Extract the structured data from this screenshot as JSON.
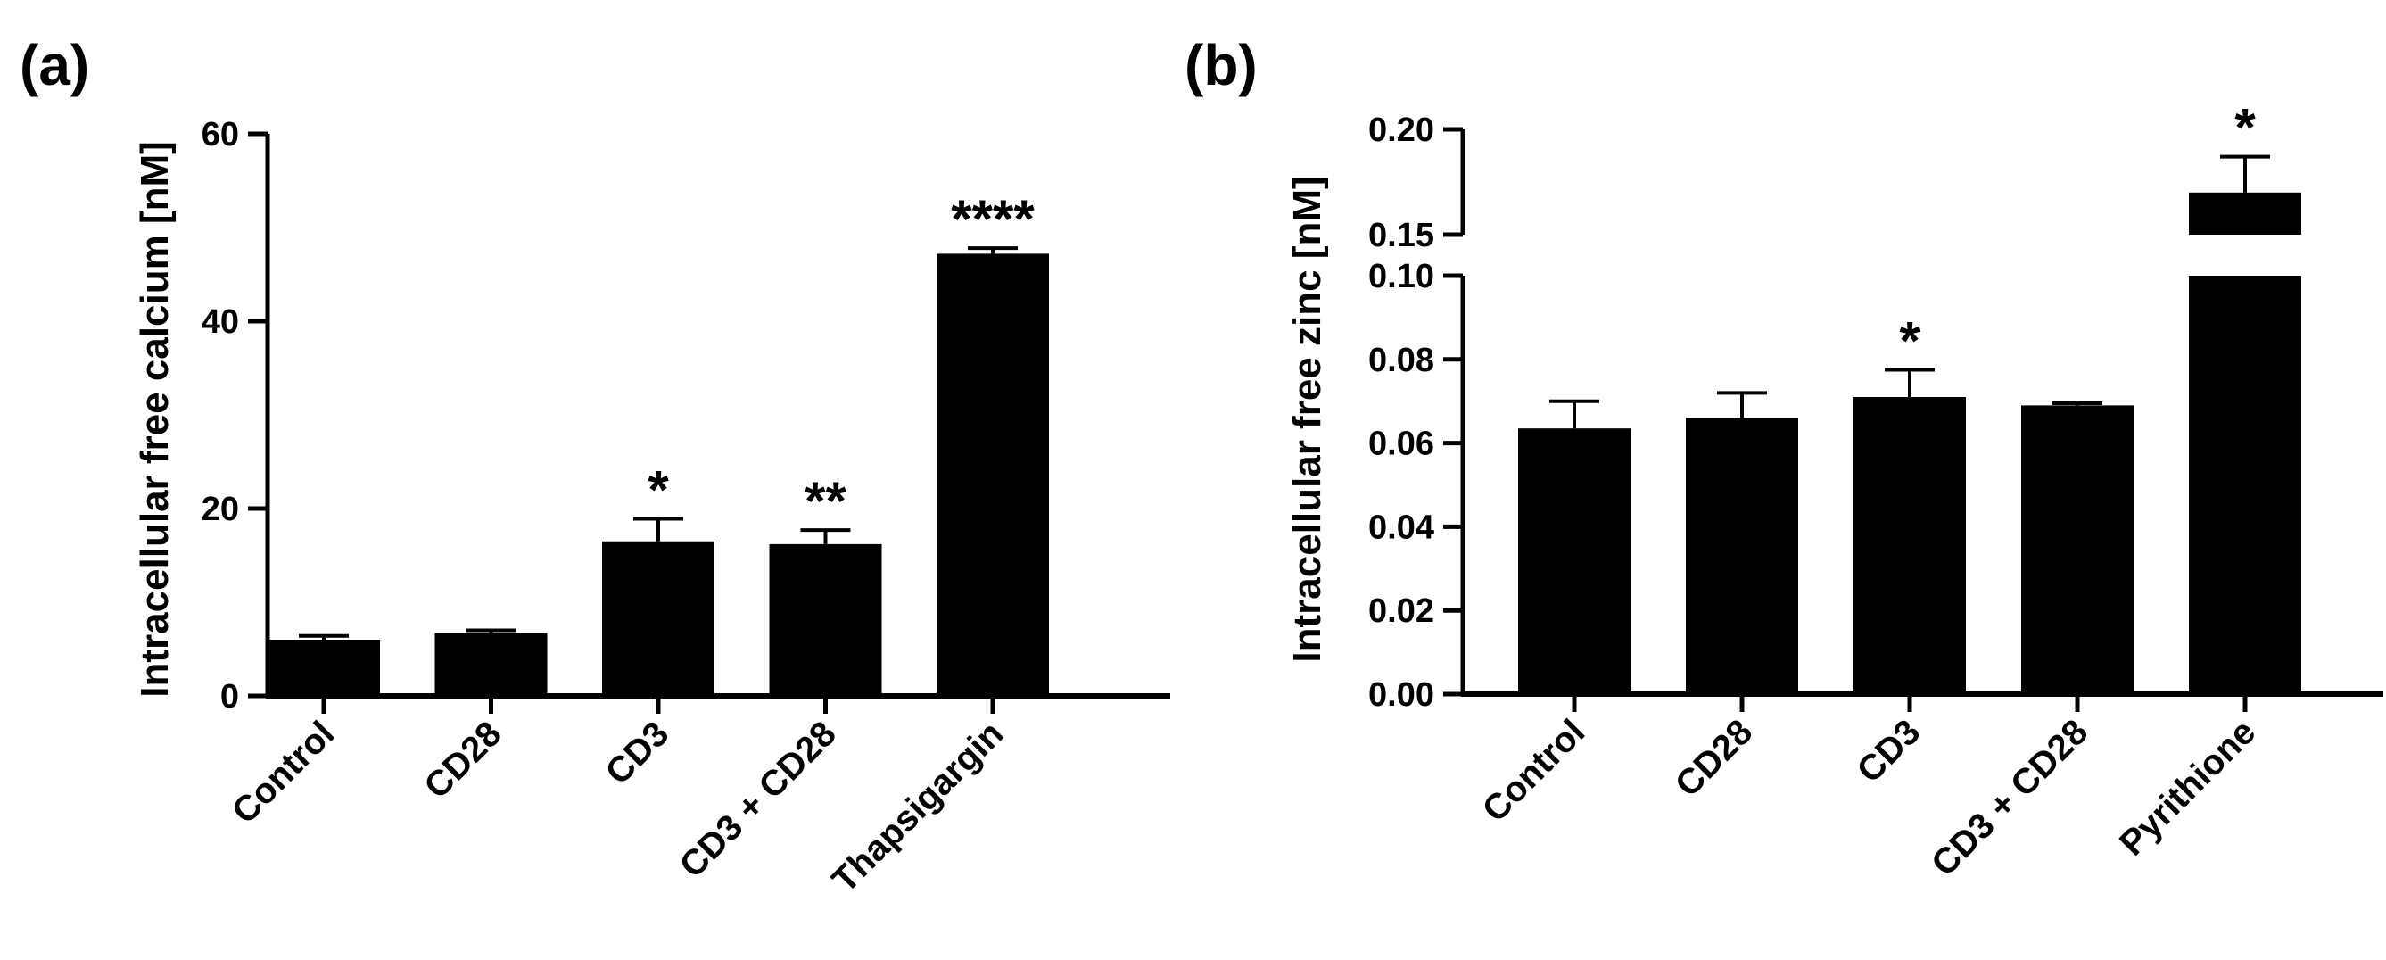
{
  "chart_data": [
    {
      "type": "bar",
      "panel_label": "(a)",
      "ylabel": "Intracellular free calcium [nM]",
      "xlabel": "",
      "categories": [
        "Control",
        "CD28",
        "CD3",
        "CD3 + CD28",
        "Thapsigargin"
      ],
      "values": [
        6,
        6.7,
        16.5,
        16.2,
        47.2
      ],
      "errors": [
        0.4,
        0.3,
        2.4,
        1.5,
        0.6
      ],
      "significance": [
        "",
        "",
        "*",
        "**",
        "****"
      ],
      "ylim": [
        0,
        60
      ],
      "yticks": [
        {
          "value": 0,
          "label": "0"
        },
        {
          "value": 20,
          "label": "20"
        },
        {
          "value": 40,
          "label": "40"
        },
        {
          "value": 60,
          "label": "60"
        }
      ],
      "grid": false,
      "color": "#000000"
    },
    {
      "type": "bar",
      "panel_label": "(b)",
      "ylabel": "Intracellular free zinc [nM]",
      "xlabel": "",
      "categories": [
        "Control",
        "CD28",
        "CD3",
        "CD3 + CD28",
        "Pyrithione"
      ],
      "values": [
        0.0635,
        0.066,
        0.071,
        0.069,
        0.17
      ],
      "errors": [
        0.0065,
        0.006,
        0.0065,
        0.0005,
        0.017
      ],
      "significance": [
        "",
        "",
        "*",
        "",
        "*"
      ],
      "axis_break": true,
      "ylim_lower": [
        0,
        0.1
      ],
      "ylim_upper": [
        0.15,
        0.2
      ],
      "yticks_lower": [
        {
          "value": 0,
          "label": "0.00"
        },
        {
          "value": 0.02,
          "label": "0.02"
        },
        {
          "value": 0.04,
          "label": "0.04"
        },
        {
          "value": 0.06,
          "label": "0.06"
        },
        {
          "value": 0.08,
          "label": "0.08"
        },
        {
          "value": 0.1,
          "label": "0.10"
        }
      ],
      "yticks_upper": [
        {
          "value": 0.15,
          "label": "0.15"
        },
        {
          "value": 0.2,
          "label": "0.20"
        }
      ],
      "grid": false,
      "color": "#000000"
    }
  ]
}
